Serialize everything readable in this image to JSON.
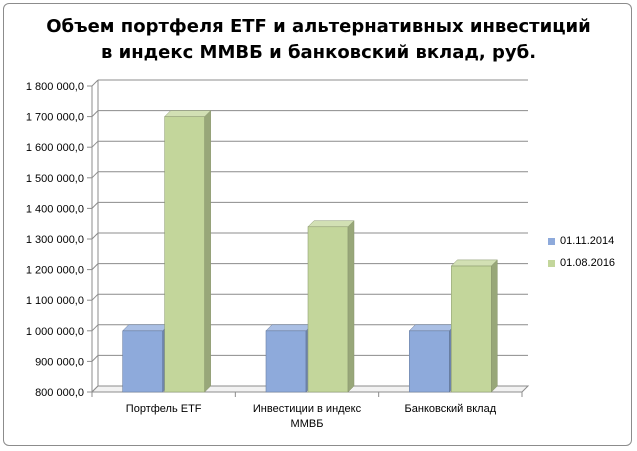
{
  "title_line1": "Объем портфеля ETF и альтернативных  инвестиций",
  "title_line2": "в индекс ММВБ и банковский  вклад,  руб.",
  "chart_data": {
    "type": "bar",
    "title": "Объем портфеля ETF и альтернативных  инвестиций в индекс ММВБ и банковский  вклад,  руб.",
    "categories": [
      "Портфель ETF",
      "Инвестиции в индекс ММВБ",
      "Банковский вклад"
    ],
    "series": [
      {
        "name": "01.11.2014",
        "values": [
          1000000,
          1000000,
          1000000
        ],
        "color": "#8eaadb"
      },
      {
        "name": "01.08.2016",
        "values": [
          1700000,
          1340000,
          1212000
        ],
        "color": "#c3d69b"
      }
    ],
    "ylim": [
      800000,
      1800000
    ],
    "ytick_step": 100000,
    "ytick_labels": [
      "800 000,0",
      "900 000,0",
      "1 000 000,0",
      "1 100 000,0",
      "1 200 000,0",
      "1 300 000,0",
      "1 400 000,0",
      "1 500 000,0",
      "1 600 000,0",
      "1 700 000,0",
      "1 800 000,0"
    ],
    "grid": true,
    "legend": "right",
    "style": "3d-bar"
  }
}
